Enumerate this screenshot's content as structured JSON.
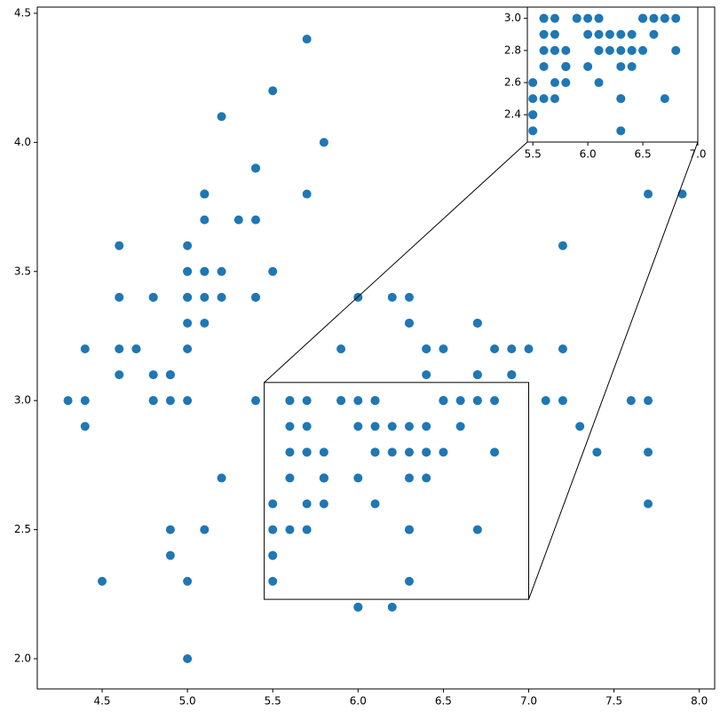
{
  "chart_data": {
    "type": "scatter",
    "color": "#1f77b4",
    "x": [
      5.1,
      4.9,
      4.7,
      4.6,
      5.0,
      5.4,
      4.6,
      5.0,
      4.4,
      4.9,
      5.4,
      4.8,
      4.8,
      4.3,
      5.8,
      5.7,
      5.4,
      5.1,
      5.7,
      5.1,
      5.4,
      5.1,
      4.6,
      5.1,
      4.8,
      5.0,
      5.0,
      5.2,
      5.2,
      4.7,
      4.8,
      5.4,
      5.2,
      5.5,
      4.9,
      5.0,
      5.5,
      4.9,
      4.4,
      5.1,
      5.0,
      4.5,
      4.4,
      5.0,
      5.1,
      4.8,
      5.1,
      4.6,
      5.3,
      5.0,
      7.0,
      6.4,
      6.9,
      5.5,
      6.5,
      5.7,
      6.3,
      4.9,
      6.6,
      5.2,
      5.0,
      5.9,
      6.0,
      6.1,
      5.6,
      6.7,
      5.6,
      5.8,
      6.2,
      5.6,
      5.9,
      6.1,
      6.3,
      6.1,
      6.4,
      6.6,
      6.8,
      6.7,
      6.0,
      5.7,
      5.5,
      5.5,
      5.8,
      6.0,
      5.4,
      6.0,
      6.7,
      6.3,
      5.6,
      5.5,
      5.5,
      6.1,
      5.8,
      5.0,
      5.6,
      5.7,
      5.7,
      6.2,
      5.1,
      5.7,
      6.3,
      5.8,
      7.1,
      6.3,
      6.5,
      7.6,
      4.9,
      7.3,
      6.7,
      7.2,
      6.5,
      6.4,
      6.8,
      5.7,
      5.8,
      6.4,
      6.5,
      7.7,
      7.7,
      6.0,
      6.9,
      5.6,
      7.7,
      6.3,
      6.7,
      7.2,
      6.2,
      6.1,
      6.4,
      7.2,
      7.4,
      7.9,
      6.4,
      6.3,
      6.1,
      7.7,
      6.3,
      6.4,
      6.0,
      6.9,
      6.7,
      6.9,
      5.8,
      6.8,
      6.7,
      6.7,
      6.3,
      6.5,
      6.2,
      5.9
    ],
    "y": [
      3.5,
      3.0,
      3.2,
      3.1,
      3.6,
      3.9,
      3.4,
      3.4,
      2.9,
      3.1,
      3.7,
      3.4,
      3.0,
      3.0,
      4.0,
      4.4,
      3.9,
      3.5,
      3.8,
      3.8,
      3.4,
      3.7,
      3.6,
      3.3,
      3.4,
      3.0,
      3.4,
      3.5,
      3.4,
      3.2,
      3.1,
      3.4,
      4.1,
      4.2,
      3.1,
      3.2,
      3.5,
      3.1,
      3.0,
      3.4,
      3.5,
      2.3,
      3.2,
      3.5,
      3.8,
      3.0,
      3.8,
      3.2,
      3.7,
      3.3,
      3.2,
      3.2,
      3.1,
      2.3,
      2.8,
      2.8,
      3.3,
      2.4,
      2.9,
      2.7,
      2.0,
      3.0,
      2.2,
      2.9,
      2.9,
      3.1,
      3.0,
      2.7,
      2.2,
      2.5,
      3.2,
      2.8,
      2.5,
      2.8,
      2.9,
      3.0,
      2.8,
      3.0,
      2.9,
      2.6,
      2.4,
      2.4,
      2.7,
      2.7,
      3.0,
      3.4,
      3.1,
      2.3,
      3.0,
      2.5,
      2.6,
      3.0,
      2.6,
      2.3,
      2.7,
      3.0,
      2.9,
      2.9,
      2.5,
      2.8,
      3.3,
      2.7,
      3.0,
      2.9,
      3.0,
      3.0,
      2.5,
      2.9,
      2.5,
      3.6,
      3.2,
      2.7,
      3.0,
      2.5,
      2.8,
      3.2,
      3.0,
      3.8,
      2.6,
      2.2,
      3.2,
      2.8,
      2.8,
      2.7,
      3.3,
      3.2,
      2.8,
      3.0,
      2.8,
      3.0,
      2.8,
      3.8,
      2.8,
      2.8,
      2.6,
      3.0,
      3.4,
      3.1,
      3.0,
      3.1,
      3.1,
      3.1,
      2.7,
      3.2,
      3.3,
      3.0,
      2.5,
      3.0,
      3.4,
      3.0
    ],
    "xlim": [
      4.12,
      8.09
    ],
    "ylim": [
      1.883,
      4.524
    ],
    "xticks": [
      4.5,
      {
        "value": 5.0,
        "label": "5.0"
      },
      5.5,
      {
        "value": 6.0,
        "label": "6.0"
      },
      6.5,
      {
        "value": 7.0,
        "label": "7.0"
      },
      7.5,
      {
        "value": 8.0,
        "label": "8.0"
      }
    ],
    "yticks": [
      {
        "value": 2.0,
        "label": "2.0"
      },
      2.5,
      {
        "value": 3.0,
        "label": "3.0"
      },
      3.5,
      {
        "value": 4.0,
        "label": "4.0"
      },
      4.5
    ],
    "inset": {
      "xlim": [
        5.45,
        7.0
      ],
      "ylim": [
        2.23,
        3.07
      ],
      "xticks": [
        5.5,
        {
          "value": 6.0,
          "label": "6.0"
        },
        6.5,
        {
          "value": 7.0,
          "label": "7.0"
        }
      ],
      "yticks": [
        2.4,
        2.6,
        2.8,
        {
          "value": 3.0,
          "label": "3.0"
        }
      ]
    }
  }
}
